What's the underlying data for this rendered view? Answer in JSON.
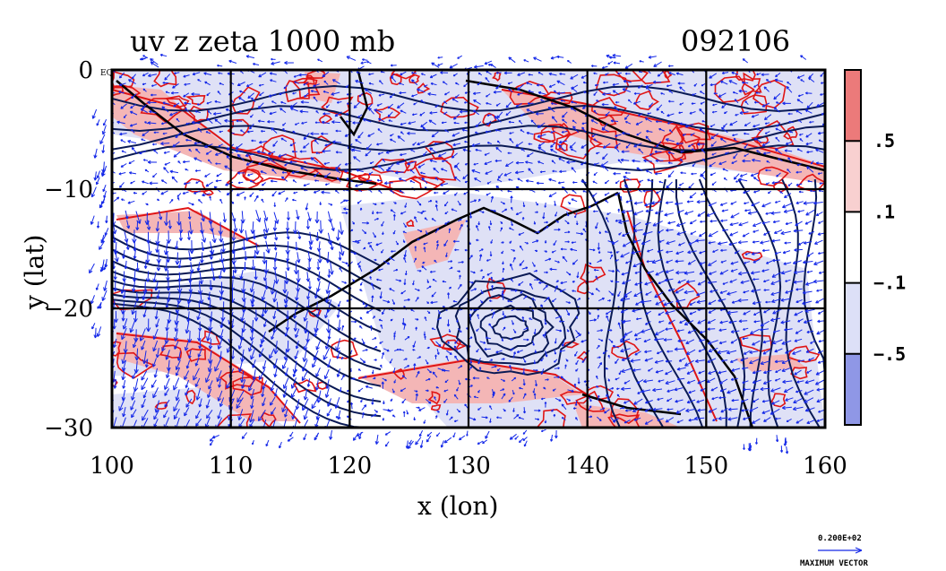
{
  "chart_data": {
    "type": "heatmap",
    "title": "uv z zeta 1000 mb",
    "subtitle": "092106",
    "xlabel": "x (lon)",
    "ylabel": "y (lat)",
    "xlim": [
      100,
      160
    ],
    "ylim": [
      -30,
      0
    ],
    "x_ticks": [
      100,
      110,
      120,
      130,
      140,
      150,
      160
    ],
    "y_ticks": [
      {
        "value": 0,
        "label": "0"
      },
      {
        "value": -10,
        "label": "−10"
      },
      {
        "value": -20,
        "label": "−20"
      },
      {
        "value": -30,
        "label": "−30"
      }
    ],
    "corner_label": "EQ",
    "grid": true,
    "colorbar": {
      "labels": [
        ".5",
        ".1",
        "−.1",
        "−.5"
      ],
      "colors": [
        "#ec7a7a",
        "#f8d0d0",
        "#ffffff",
        "#dde0f7",
        "#8f97e6"
      ]
    },
    "vector_legend": {
      "value": "0.200E+02",
      "caption": "MAXIMUM VECTOR"
    },
    "colors": {
      "positive_contour": "#e01515",
      "positive_fill": "#f4b6b6",
      "negative_fill": "#dfe1f6",
      "height_contour": "#0a1a55",
      "wind_vectors": "#1428e8",
      "coastline": "#000000"
    }
  }
}
